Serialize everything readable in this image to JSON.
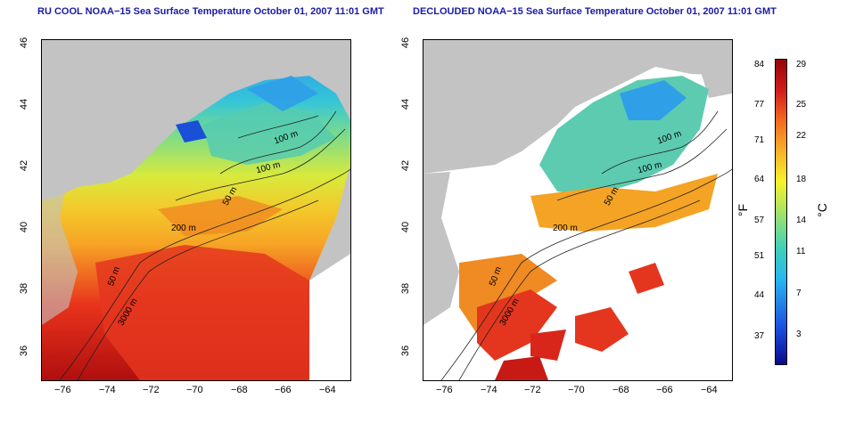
{
  "left_panel": {
    "title": "RU COOL NOAA−15 Sea Surface Temperature October 01, 2007 11:01 GMT",
    "contours": [
      "100 m",
      "100 m",
      "50 m",
      "200 m",
      "50 m",
      "3000 m"
    ]
  },
  "right_panel": {
    "title": "DECLOUDED NOAA−15 Sea Surface Temperature October 01, 2007 11:01 GMT",
    "contours": [
      "100 m",
      "100 m",
      "50 m",
      "200 m",
      "50 m",
      "3000 m"
    ]
  },
  "axes": {
    "x_ticks": [
      "−76",
      "−74",
      "−72",
      "−70",
      "−68",
      "−66",
      "−64"
    ],
    "y_ticks": [
      "36",
      "38",
      "40",
      "42",
      "44",
      "46"
    ]
  },
  "colorbar": {
    "fahrenheit_ticks": [
      "84",
      "77",
      "71",
      "64",
      "57",
      "51",
      "44",
      "37"
    ],
    "celsius_ticks": [
      "29",
      "25",
      "22",
      "18",
      "14",
      "11",
      "7",
      "3"
    ],
    "fahrenheit_unit": "°F",
    "celsius_unit": "°C"
  },
  "colors": {
    "land": "#c3c3c3",
    "cloud": "#ffffff",
    "title": "#1a1aa6"
  }
}
